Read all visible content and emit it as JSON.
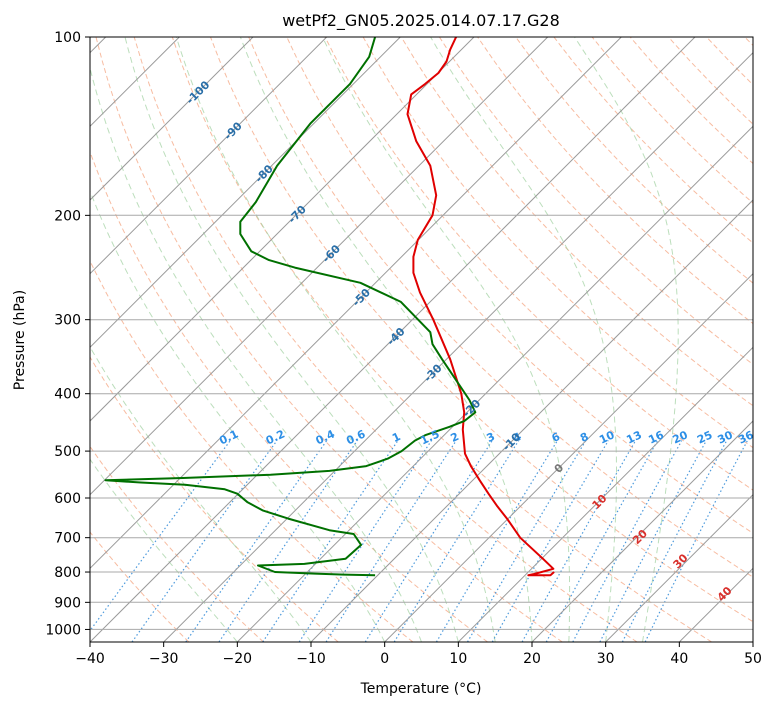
{
  "chart_data": {
    "type": "line",
    "title": "wetPf2_GN05.2025.014.07.17.G28",
    "xlabel": "Temperature (°C)",
    "ylabel": "Pressure (hPa)",
    "xlim": [
      -40,
      50
    ],
    "ylim": [
      1050,
      100
    ],
    "y_scale": "log",
    "grid": true,
    "x_ticks": [
      -40,
      -30,
      -20,
      -10,
      0,
      10,
      20,
      30,
      40,
      50
    ],
    "y_ticks": [
      100,
      200,
      300,
      400,
      500,
      600,
      700,
      800,
      900,
      1000
    ],
    "isotherm_labels": [
      {
        "t": -100,
        "p": 124
      },
      {
        "t": -90,
        "p": 144
      },
      {
        "t": -80,
        "p": 170
      },
      {
        "t": -70,
        "p": 199
      },
      {
        "t": -60,
        "p": 232
      },
      {
        "t": -50,
        "p": 275
      },
      {
        "t": -40,
        "p": 320
      },
      {
        "t": -30,
        "p": 369
      },
      {
        "t": -20,
        "p": 423
      },
      {
        "t": -10,
        "p": 482
      }
    ],
    "mixing_ratio_labels": [
      "0.1",
      "0.2",
      "0.4",
      "0.6",
      "1",
      "1.5",
      "2",
      "3",
      "4",
      "6",
      "8",
      "10",
      "13",
      "16",
      "20",
      "25",
      "30",
      "36"
    ],
    "moist_adiabat_labels": [
      {
        "label": "0",
        "t": 24.0,
        "p": 540
      },
      {
        "label": "10",
        "t": 29.5,
        "p": 615
      },
      {
        "label": "20",
        "t": 35.0,
        "p": 705
      },
      {
        "label": "30",
        "t": 40.5,
        "p": 775
      },
      {
        "label": "40",
        "t": 46.5,
        "p": 880
      }
    ],
    "series": [
      {
        "color": "#e00000",
        "x": [
          23,
          22.5,
          19.5,
          20.3,
          22.9,
          21.5,
          18.4,
          16.6,
          15.3,
          14.1,
          12.9,
          11.7,
          10.9,
          10.6,
          10.8,
          10.4,
          8.9,
          6.6,
          4.8,
          3.9,
          3.9,
          4.5,
          6.5,
          7.0,
          6.2,
          4.3,
          3.1,
          3.6,
          5.5,
          7.3,
          8.4,
          8.9,
          9.7,
          9.8
        ],
        "y": [
          800,
          810,
          810,
          806,
          790,
          760,
          700,
          650,
          620,
          590,
          560,
          530,
          505,
          460,
          430,
          400,
          350,
          300,
          270,
          250,
          235,
          220,
          200,
          185,
          165,
          150,
          135,
          125,
          120,
          115,
          110,
          105,
          100,
          100
        ]
      },
      {
        "color": "#007000",
        "x": [
          -1.3,
          -5.5,
          -9.5,
          -14.9,
          -17.2,
          -10.9,
          -5.3,
          -3.2,
          -4.2,
          -7.5,
          -13.1,
          -16.5,
          -18.6,
          -20.0,
          -21.7,
          -27.1,
          -33.1,
          -37.9,
          -27.4,
          -15.5,
          -7.5,
          -2.5,
          0.4,
          2.3,
          4.1,
          5.5,
          8.8,
          10.8,
          12.3,
          11.5,
          9.1,
          7.8,
          6.5,
          6.2,
          2.2,
          -3.3,
          -12.2,
          -15.7,
          -18.1,
          -19.6,
          -19.6,
          -17.5,
          -14.6,
          -10.1,
          -4.7,
          -2.1,
          -1.3
        ],
        "y": [
          810,
          808,
          805,
          800,
          780,
          775,
          760,
          720,
          690,
          680,
          650,
          630,
          610,
          590,
          580,
          570,
          565,
          560,
          555,
          548,
          540,
          530,
          515,
          500,
          480,
          470,
          455,
          445,
          430,
          410,
          370,
          350,
          330,
          315,
          280,
          260,
          245,
          238,
          230,
          215,
          205,
          190,
          165,
          140,
          120,
          108,
          100
        ]
      }
    ]
  }
}
